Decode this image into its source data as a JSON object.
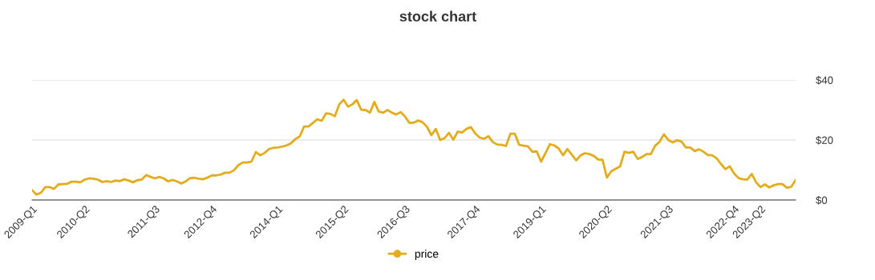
{
  "chart_data": {
    "type": "line",
    "title": "stock chart",
    "categories": [
      "2009-Q1",
      null,
      null,
      null,
      null,
      null,
      null,
      null,
      null,
      null,
      null,
      null,
      "2010-Q2",
      null,
      null,
      null,
      null,
      null,
      null,
      null,
      null,
      null,
      null,
      null,
      null,
      null,
      null,
      null,
      "2011-Q3",
      null,
      null,
      null,
      null,
      null,
      null,
      null,
      null,
      null,
      null,
      null,
      null,
      "2012-Q4",
      null,
      null,
      null,
      null,
      null,
      null,
      null,
      null,
      null,
      null,
      null,
      null,
      null,
      null,
      "2014-Q1",
      null,
      null,
      null,
      null,
      null,
      null,
      null,
      null,
      null,
      null,
      null,
      null,
      null,
      null,
      "2015-Q2",
      null,
      null,
      null,
      null,
      null,
      null,
      null,
      null,
      null,
      null,
      null,
      null,
      null,
      "2016-Q3",
      null,
      null,
      null,
      null,
      null,
      null,
      null,
      null,
      null,
      null,
      null,
      null,
      null,
      null,
      null,
      "2017-Q4",
      null,
      null,
      null,
      null,
      null,
      null,
      null,
      null,
      null,
      null,
      null,
      null,
      null,
      null,
      "2019-Q1",
      null,
      null,
      null,
      null,
      null,
      null,
      null,
      null,
      null,
      null,
      null,
      null,
      null,
      null,
      "2020-Q2",
      null,
      null,
      null,
      null,
      null,
      null,
      null,
      null,
      null,
      null,
      null,
      null,
      null,
      "2021-Q3",
      null,
      null,
      null,
      null,
      null,
      null,
      null,
      null,
      null,
      null,
      null,
      null,
      null,
      null,
      "2022-Q4",
      null,
      null,
      null,
      null,
      null,
      "2023-Q2",
      null,
      null,
      null,
      null,
      null,
      null,
      null,
      null
    ],
    "series": [
      {
        "name": "price",
        "color": "#e3ac1c",
        "values": [
          3.3,
          1.8,
          2.4,
          4.3,
          4.3,
          3.7,
          5.2,
          5.3,
          5.4,
          6.1,
          6.1,
          5.9,
          6.8,
          7.2,
          7.1,
          6.8,
          6.0,
          6.3,
          6.0,
          6.5,
          6.3,
          6.9,
          6.5,
          5.9,
          6.6,
          6.8,
          8.3,
          7.7,
          7.2,
          7.7,
          7.2,
          6.2,
          6.7,
          6.2,
          5.5,
          6.2,
          7.3,
          7.4,
          7.1,
          6.9,
          7.5,
          8.2,
          8.2,
          8.5,
          9.1,
          9.1,
          9.9,
          11.6,
          12.5,
          12.5,
          12.8,
          16.0,
          14.9,
          15.7,
          17.0,
          17.4,
          17.5,
          17.8,
          18.2,
          18.9,
          20.3,
          21.2,
          24.5,
          24.5,
          25.7,
          26.9,
          26.4,
          28.9,
          28.7,
          27.9,
          31.9,
          33.4,
          31.1,
          31.9,
          33.3,
          30.1,
          30.0,
          29.1,
          32.7,
          29.5,
          29.1,
          30.0,
          29.1,
          28.5,
          29.3,
          27.8,
          25.7,
          25.8,
          26.5,
          25.9,
          24.4,
          21.6,
          23.7,
          20.0,
          20.6,
          22.4,
          20.1,
          22.8,
          22.5,
          23.7,
          24.3,
          22.2,
          20.8,
          20.4,
          21.3,
          19.3,
          18.5,
          18.4,
          18.0,
          22.1,
          22.1,
          18.4,
          18.1,
          17.9,
          16.1,
          16.2,
          12.8,
          15.6,
          18.6,
          18.2,
          17.2,
          14.9,
          17.0,
          15.1,
          13.2,
          14.9,
          15.6,
          15.3,
          14.7,
          13.5,
          13.4,
          7.5,
          9.6,
          10.4,
          11.2,
          16.1,
          15.7,
          16.1,
          13.7,
          14.3,
          15.3,
          15.3,
          18.1,
          19.4,
          21.9,
          20.0,
          19.2,
          19.9,
          19.5,
          17.5,
          17.5,
          16.3,
          16.9,
          16.1,
          15.0,
          14.9,
          13.9,
          12.0,
          10.3,
          11.2,
          8.8,
          7.3,
          6.9,
          6.8,
          8.7,
          5.9,
          4.3,
          5.2,
          4.2,
          4.9,
          5.3,
          5.3,
          4.1,
          4.4,
          6.6
        ]
      }
    ],
    "ylim": [
      0,
      40
    ],
    "yticks": [
      {
        "value": 0,
        "label": "$0"
      },
      {
        "value": 20,
        "label": "$20"
      },
      {
        "value": 40,
        "label": "$40"
      }
    ],
    "grid": "y",
    "legend": "bottom",
    "line_style": "solid"
  }
}
